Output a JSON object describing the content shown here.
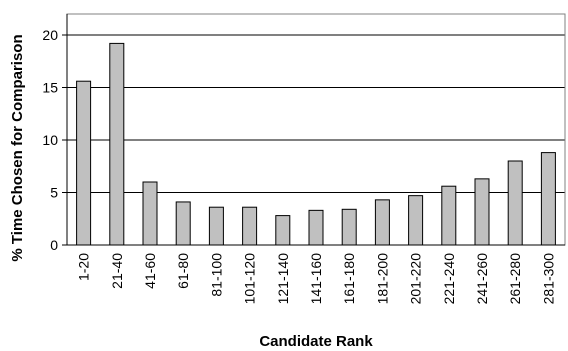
{
  "chart_data": {
    "type": "bar",
    "title": "",
    "xlabel": "Candidate Rank",
    "ylabel": "% Time Chosen for Comparison",
    "categories": [
      "1-20",
      "21-40",
      "41-60",
      "61-80",
      "81-100",
      "101-120",
      "121-140",
      "141-160",
      "161-180",
      "181-200",
      "201-220",
      "221-240",
      "241-260",
      "261-280",
      "281-300"
    ],
    "values": [
      15.6,
      19.2,
      6.0,
      4.1,
      3.6,
      3.6,
      2.8,
      3.3,
      3.4,
      4.3,
      4.7,
      5.6,
      6.3,
      8.0,
      8.8
    ],
    "ylim": [
      0,
      22
    ],
    "yticks": [
      0,
      5,
      10,
      15,
      20
    ],
    "grid": true,
    "bar_color": "#c0c0c0",
    "bar_edge_color": "#000000"
  }
}
